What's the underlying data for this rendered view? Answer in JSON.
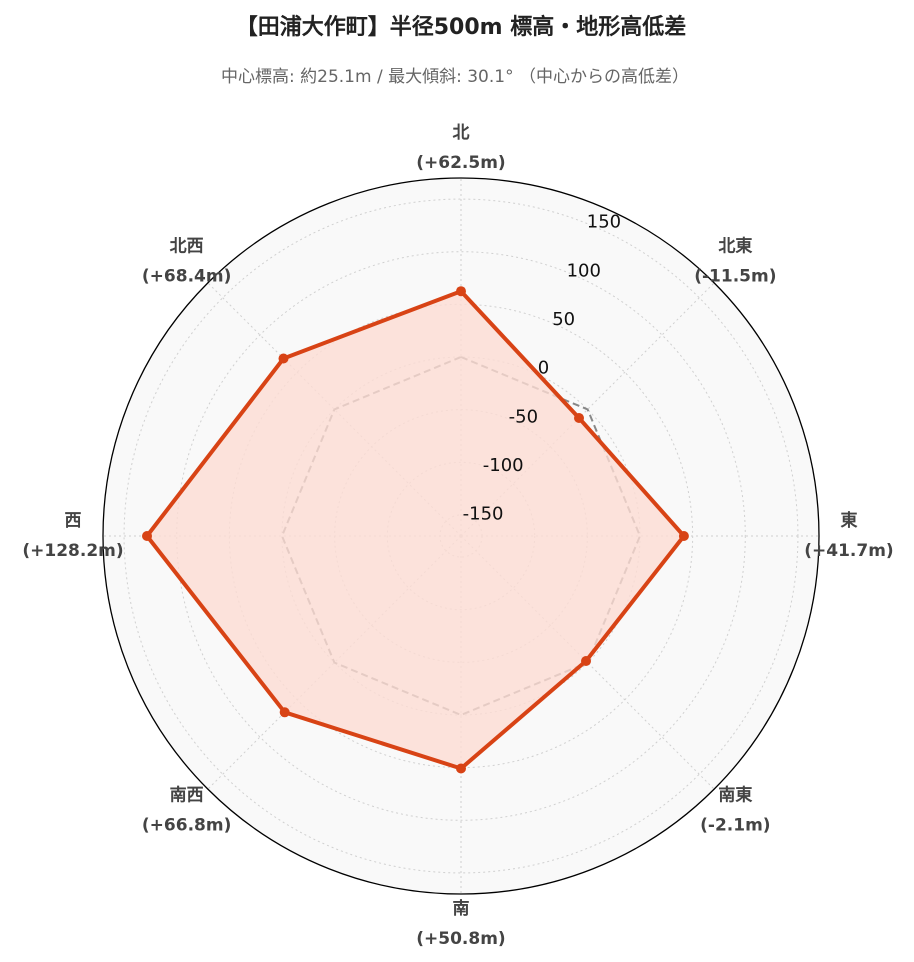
{
  "chart_data": {
    "type": "radar",
    "title": "【田浦大作町】半径500m 標高・地形高低差",
    "subtitle": "中心標高: 約25.1m / 最大傾斜: 30.1° （中心からの高低差）",
    "categories": [
      "北",
      "北東",
      "東",
      "南東",
      "南",
      "南西",
      "西",
      "北西"
    ],
    "series": [
      {
        "color": "#d84315",
        "fill": "#fddcd3",
        "markers": true,
        "values": [
          62.5,
          -11.5,
          41.7,
          -2.1,
          50.8,
          66.8,
          128.2,
          68.4
        ],
        "value_labels": [
          "(+62.5m)",
          "(-11.5m)",
          "(+41.7m)",
          "(-2.1m)",
          "(+50.8m)",
          "(+66.8m)",
          "(+128.2m)",
          "(+68.4m)"
        ]
      },
      {
        "color": "#888888",
        "dash": true,
        "values": [
          0,
          0,
          0,
          0,
          0,
          0,
          0,
          0
        ]
      }
    ],
    "rlim": [
      -170,
      170
    ],
    "rticks": [
      -150,
      -100,
      -50,
      0,
      50,
      100,
      150
    ],
    "grid": true
  }
}
